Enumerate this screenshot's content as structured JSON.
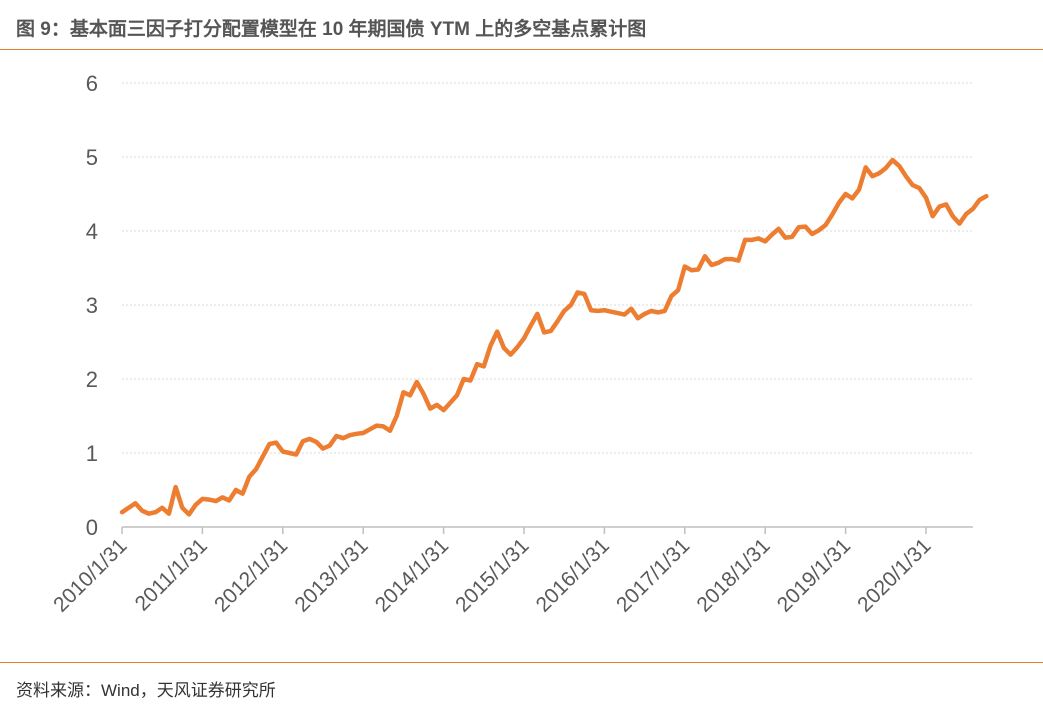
{
  "figure": {
    "title": "图 9：基本面三因子打分配置模型在 10 年期国债 YTM 上的多空基点累计图",
    "source": "资料来源：Wind，天风证券研究所"
  },
  "colors": {
    "accent": "#ED7D31",
    "line": "#ED7D31",
    "grid": "#D9D9D9",
    "axis": "#BFBFBF",
    "text": "#595959"
  },
  "chart_data": {
    "type": "line",
    "title": "",
    "xlabel": "",
    "ylabel": "",
    "ylim": [
      0,
      6
    ],
    "yticks": [
      "0",
      "1",
      "2",
      "3",
      "4",
      "5",
      "6"
    ],
    "xticks": [
      "2010/1/31",
      "2011/1/31",
      "2012/1/31",
      "2013/1/31",
      "2014/1/31",
      "2015/1/31",
      "2016/1/31",
      "2017/1/31",
      "2018/1/31",
      "2019/1/31",
      "2020/1/31"
    ],
    "grid": true,
    "legend": "none",
    "series": [
      {
        "x_start": "2010/1/31",
        "frequency": "monthly",
        "values": [
          0.2,
          0.26,
          0.32,
          0.22,
          0.18,
          0.2,
          0.26,
          0.18,
          0.54,
          0.26,
          0.17,
          0.3,
          0.38,
          0.37,
          0.35,
          0.4,
          0.36,
          0.5,
          0.45,
          0.68,
          0.78,
          0.95,
          1.12,
          1.14,
          1.02,
          1.0,
          0.98,
          1.16,
          1.19,
          1.15,
          1.06,
          1.1,
          1.23,
          1.2,
          1.24,
          1.26,
          1.27,
          1.32,
          1.37,
          1.36,
          1.3,
          1.5,
          1.82,
          1.78,
          1.96,
          1.8,
          1.6,
          1.65,
          1.58,
          1.68,
          1.78,
          2.0,
          1.98,
          2.2,
          2.17,
          2.45,
          2.64,
          2.42,
          2.33,
          2.43,
          2.55,
          2.72,
          2.88,
          2.63,
          2.65,
          2.78,
          2.92,
          3.0,
          3.17,
          3.15,
          2.93,
          2.92,
          2.93,
          2.91,
          2.89,
          2.87,
          2.95,
          2.82,
          2.88,
          2.92,
          2.9,
          2.92,
          3.12,
          3.2,
          3.52,
          3.47,
          3.48,
          3.66,
          3.54,
          3.57,
          3.62,
          3.62,
          3.6,
          3.88,
          3.88,
          3.9,
          3.86,
          3.95,
          4.03,
          3.91,
          3.92,
          4.05,
          4.06,
          3.96,
          4.01,
          4.08,
          4.22,
          4.38,
          4.5,
          4.44,
          4.56,
          4.86,
          4.74,
          4.78,
          4.85,
          4.96,
          4.88,
          4.74,
          4.62,
          4.58,
          4.45,
          4.2,
          4.33,
          4.36,
          4.2,
          4.1,
          4.23,
          4.3,
          4.42,
          4.47
        ]
      }
    ]
  }
}
